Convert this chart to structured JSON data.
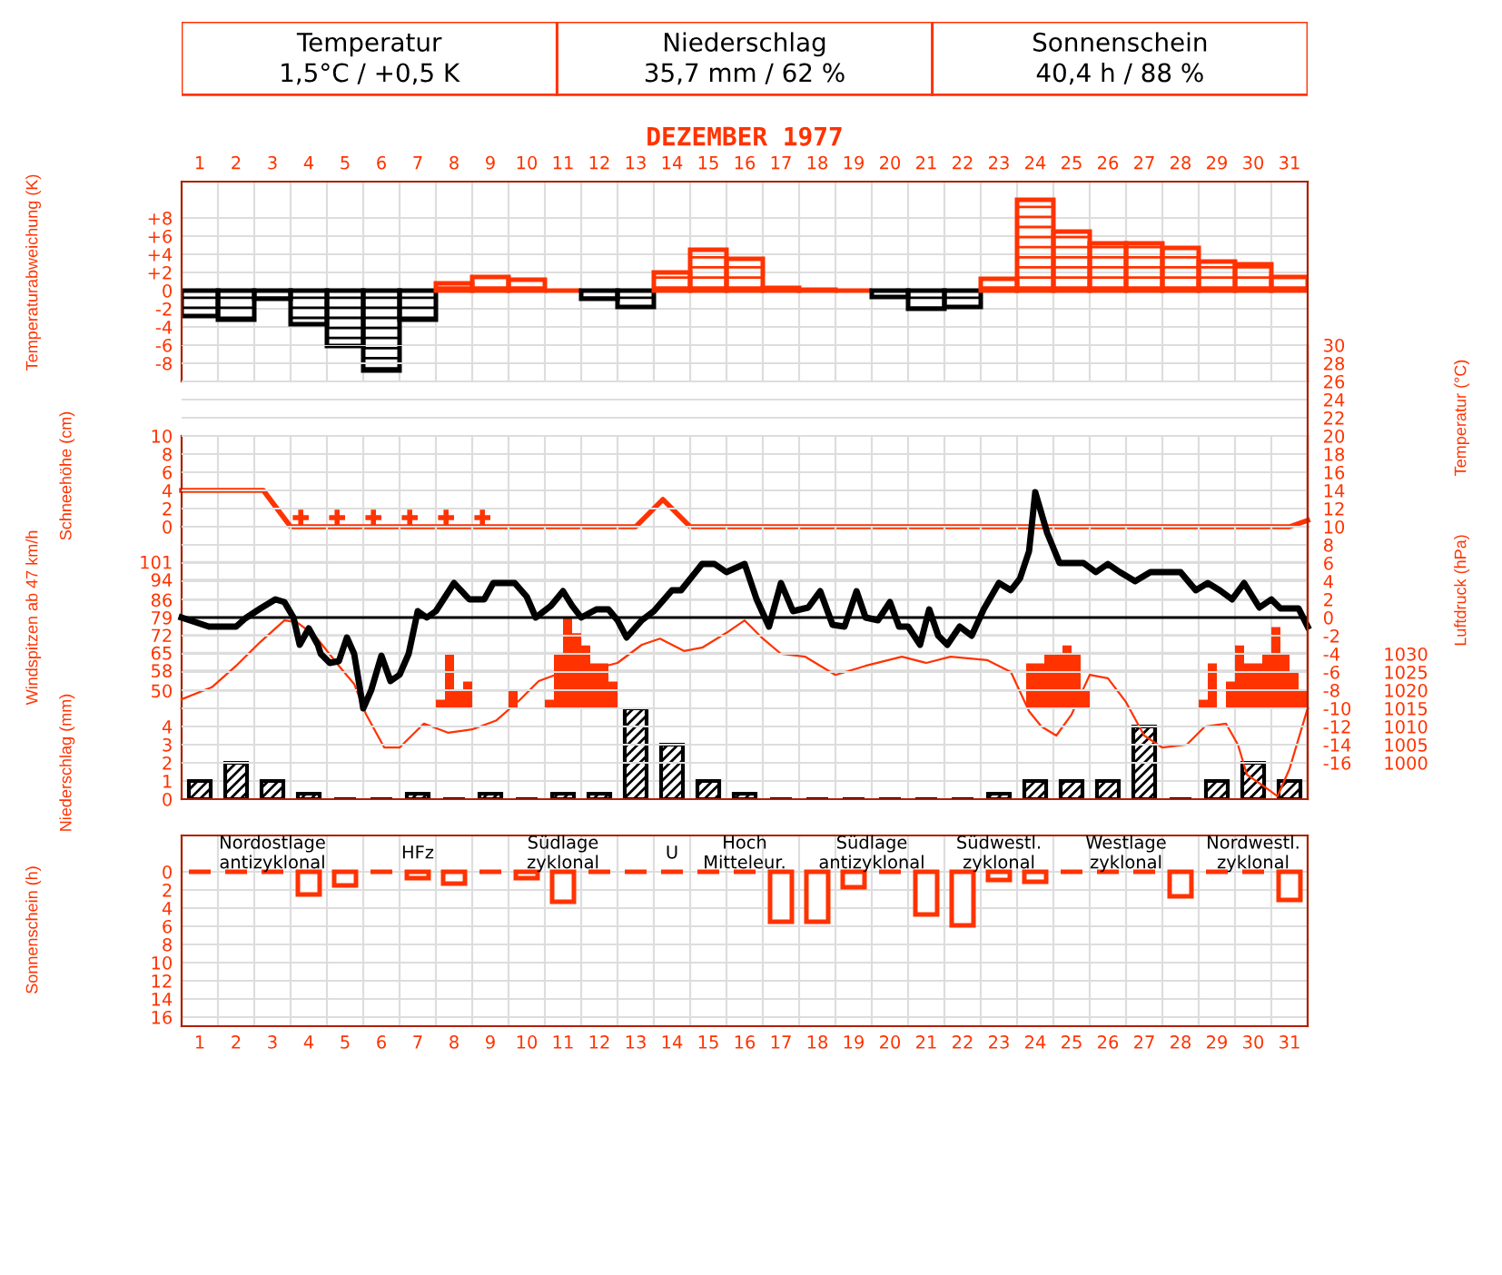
{
  "chart_data": [
    {
      "type": "other",
      "title": "DEZEMBER 1977",
      "annotations": [
        "Temperatur",
        "1,5°C / +0,5 K",
        "Niederschlag",
        "35,7 mm / 62 %",
        "Sonnenschein",
        "40,4 h / 88 %"
      ]
    },
    {
      "type": "bar",
      "ylabel": "Temperaturabweichung (K)",
      "x": [
        1,
        2,
        3,
        4,
        5,
        6,
        7,
        8,
        9,
        10,
        11,
        12,
        13,
        14,
        15,
        16,
        17,
        18,
        19,
        20,
        21,
        22,
        23,
        24,
        25,
        26,
        27,
        28,
        29,
        30,
        31
      ],
      "values": [
        -2.8,
        -3.2,
        -0.9,
        -3.7,
        -6.1,
        -8.8,
        -3.2,
        0.8,
        1.5,
        1.2,
        0,
        -0.9,
        -1.8,
        2,
        4.5,
        3.5,
        0.3,
        0.1,
        0,
        -0.7,
        -2,
        -1.8,
        1.3,
        10,
        6.5,
        5.2,
        5.2,
        4.7,
        3.2,
        2.9,
        1.5
      ],
      "colors": [
        "#000000",
        "#000000",
        "#000000",
        "#000000",
        "#000000",
        "#000000",
        "#000000",
        "#ff3300",
        "#ff3300",
        "#ff3300",
        "#ff3300",
        "#000000",
        "#000000",
        "#ff3300",
        "#ff3300",
        "#ff3300",
        "#ff3300",
        "#ff3300",
        "#ff3300",
        "#000000",
        "#000000",
        "#000000",
        "#ff3300",
        "#ff3300",
        "#ff3300",
        "#ff3300",
        "#ff3300",
        "#ff3300",
        "#ff3300",
        "#ff3300",
        "#ff3300"
      ],
      "xlim": [
        0.5,
        31.5
      ],
      "xticks": [
        1,
        2,
        3,
        4,
        5,
        6,
        7,
        8,
        9,
        10,
        11,
        12,
        13,
        14,
        15,
        16,
        17,
        18,
        19,
        20,
        21,
        22,
        23,
        24,
        25,
        26,
        27,
        28,
        29,
        30,
        31
      ],
      "ylim": [
        -10,
        12
      ],
      "yticks": [
        {
          "value": 8,
          "label": "+8"
        },
        {
          "value": 6,
          "label": "+6"
        },
        {
          "value": 4,
          "label": "+4"
        },
        {
          "value": 2,
          "label": "+2"
        },
        0,
        -2,
        -4,
        -6,
        -8
      ],
      "grid": true
    },
    {
      "type": "line",
      "ylabel": "Schneehöhe (cm)",
      "xlim": [
        0.5,
        31.5
      ],
      "ylim": [
        0,
        10
      ],
      "yticks": [
        0,
        2,
        4,
        6,
        8,
        10
      ],
      "tick_labels": "y",
      "grid": true,
      "series": [
        {
          "color": "#ff3300",
          "x": [
            0.5,
            2.75,
            3.5,
            13.0,
            13.75,
            14.5,
            31.0,
            31.5
          ],
          "values": [
            4,
            4,
            0,
            0,
            3,
            0,
            0,
            0.7
          ]
        },
        {
          "type": "scatter",
          "marker": "cross",
          "color": "#ff3300",
          "x": [
            3.78,
            4.78,
            5.78,
            6.78,
            7.78,
            8.78
          ],
          "values": [
            1,
            1,
            1,
            1,
            1,
            1
          ]
        }
      ]
    },
    {
      "type": "bar",
      "ylabel": "Windspitzen ab 47 km/h",
      "color": "#ff3300",
      "xlim": [
        0.5,
        31.5
      ],
      "ylim": [
        43,
        115
      ],
      "yticks": [
        50,
        58,
        65,
        72,
        79,
        86,
        94,
        101
      ],
      "tick_labels": "y",
      "grid": true,
      "x": [
        7.625,
        7.875,
        8.125,
        8.375,
        9.625,
        10.625,
        10.875,
        11.125,
        11.375,
        11.625,
        11.875,
        12.125,
        12.375,
        23.875,
        24.125,
        24.375,
        24.625,
        24.875,
        25.125,
        25.375,
        28.625,
        28.875,
        29.375,
        29.625,
        29.875,
        30.125,
        30.375,
        30.625,
        30.875,
        31.125,
        31.375
      ],
      "values": [
        46.4,
        64.4,
        50,
        53.6,
        50,
        46.4,
        64.4,
        78.7,
        72.8,
        67.9,
        60.8,
        60.8,
        53.6,
        60.8,
        60.8,
        64.4,
        64.4,
        67.9,
        64.4,
        50,
        46.4,
        60.8,
        53.6,
        67.9,
        60.8,
        60.8,
        64.4,
        75.2,
        64.4,
        57.2,
        50
      ]
    },
    {
      "type": "line",
      "y2label": "Temperatur (°C)",
      "y3label": "Luftdruck (hPa)",
      "xlim": [
        0.5,
        31.5
      ],
      "y2lim": [
        -20,
        30
      ],
      "y2ticks": [
        30,
        28,
        26,
        24,
        22,
        20,
        18,
        16,
        14,
        12,
        10,
        8,
        6,
        4,
        2,
        0,
        -2,
        -4,
        -6,
        -8,
        -10,
        -12,
        -14,
        -16
      ],
      "y3lim": [
        990,
        1115
      ],
      "y3ticks": [
        1030,
        1025,
        1020,
        1015,
        1010,
        1005,
        1000
      ],
      "tick_labels": "y",
      "grid": true,
      "ref_lines": [
        {
          "axis": "y2",
          "value": 0,
          "color": "#000000"
        }
      ],
      "series": [
        {
          "color": "#000000",
          "axis": "y2",
          "x": [
            0.5,
            1.25,
            1.5,
            2.0,
            2.25,
            2.67,
            3.08,
            3.33,
            3.58,
            3.75,
            4.0,
            4.25,
            4.33,
            4.58,
            4.83,
            5.05,
            5.25,
            5.5,
            5.72,
            6.0,
            6.25,
            6.5,
            6.75,
            7.0,
            7.25,
            7.5,
            8.0,
            8.42,
            8.83,
            9.08,
            9.67,
            10.0,
            10.25,
            10.67,
            11.0,
            11.25,
            11.5,
            11.92,
            12.25,
            12.5,
            12.75,
            13.17,
            13.5,
            14.0,
            14.25,
            14.83,
            15.17,
            15.5,
            16.0,
            16.33,
            16.67,
            17.0,
            17.33,
            17.75,
            18.08,
            18.42,
            18.75,
            19.08,
            19.33,
            19.67,
            20.0,
            20.25,
            20.5,
            20.83,
            21.08,
            21.33,
            21.58,
            21.92,
            22.25,
            22.58,
            23.0,
            23.33,
            23.58,
            23.83,
            24.0,
            24.33,
            24.67,
            25.33,
            25.67,
            26.0,
            26.33,
            26.75,
            27.17,
            28.0,
            28.42,
            28.75,
            29.08,
            29.42,
            29.75,
            30.17,
            30.5,
            30.75,
            31.25,
            31.5
          ],
          "values": [
            0,
            -1,
            -1,
            -1,
            -0.1,
            1,
            2,
            1.7,
            0,
            -3,
            -1.2,
            -3,
            -4,
            -5,
            -4.8,
            -2.2,
            -4,
            -10,
            -8,
            -4.2,
            -7,
            -6.3,
            -4,
            0.7,
            0,
            0.7,
            3.8,
            2,
            2,
            3.8,
            3.8,
            2.3,
            0,
            1.3,
            2.9,
            1.3,
            0,
            0.9,
            0.9,
            -0.3,
            -2.2,
            -0.3,
            0.7,
            3,
            3,
            5.9,
            5.9,
            5,
            5.9,
            2,
            -1,
            3.8,
            0.7,
            1.1,
            2.9,
            -0.8,
            -1,
            2.9,
            0,
            -0.3,
            1.7,
            -1,
            -1,
            -3,
            0.9,
            -2,
            -3,
            -1,
            -2,
            0.9,
            3.8,
            3,
            4.3,
            7.3,
            13.8,
            9.3,
            6,
            6,
            5,
            5.9,
            5,
            4,
            5,
            5,
            3,
            3.8,
            3,
            2,
            3.8,
            1.1,
            2,
            1,
            1,
            -1
          ]
        },
        {
          "color": "#ff3300",
          "axis": "y3",
          "x": [
            0.5,
            1.33,
            2.0,
            2.67,
            3.33,
            3.67,
            4.17,
            4.83,
            5.25,
            5.58,
            6.08,
            6.5,
            7.17,
            7.83,
            8.5,
            9.17,
            9.83,
            10.33,
            11.0,
            11.83,
            12.5,
            13.17,
            13.67,
            14.33,
            14.83,
            15.5,
            16.0,
            16.5,
            17.0,
            17.67,
            18.5,
            19.33,
            20.33,
            21.0,
            21.67,
            22.67,
            23.33,
            23.83,
            24.17,
            24.58,
            25.0,
            25.5,
            26.0,
            26.5,
            27.0,
            27.5,
            28.17,
            28.67,
            29.25,
            29.58,
            29.83,
            30.33,
            30.67,
            31.0,
            31.5
          ],
          "values": [
            1017.5,
            1020.8,
            1026.7,
            1033.3,
            1039.2,
            1038.7,
            1035,
            1026.7,
            1021.7,
            1013.3,
            1004.2,
            1004.2,
            1010.8,
            1008.3,
            1009.2,
            1011.7,
            1017.5,
            1022.5,
            1025,
            1025.8,
            1027.5,
            1032.5,
            1034.2,
            1030.8,
            1031.7,
            1035.8,
            1039.2,
            1034.2,
            1030,
            1029.2,
            1024.2,
            1026.7,
            1029.2,
            1027.5,
            1029.2,
            1028.3,
            1025,
            1014.2,
            1010,
            1007.5,
            1013.3,
            1024.2,
            1023.3,
            1016.7,
            1007.5,
            1004.2,
            1005,
            1010,
            1010.8,
            1005,
            996.7,
            993.3,
            990.8,
            998.3,
            1015
          ]
        }
      ]
    },
    {
      "type": "bar",
      "ylabel": "Niederschlag (mm)",
      "color": "#000000",
      "xlim": [
        0.5,
        31.5
      ],
      "ylim": [
        0,
        5
      ],
      "yticks": [
        0,
        1,
        2,
        3,
        4
      ],
      "tick_labels": "y",
      "grid": true,
      "x": [
        1,
        2,
        3,
        4,
        5,
        6,
        7,
        8,
        9,
        10,
        11,
        12,
        13,
        14,
        15,
        16,
        17,
        18,
        19,
        20,
        21,
        22,
        23,
        24,
        25,
        26,
        27,
        28,
        29,
        30,
        31
      ],
      "values": [
        1,
        2,
        1,
        0.3,
        0,
        0,
        0.3,
        0,
        0.3,
        0,
        0.3,
        0.3,
        5,
        3,
        1,
        0.3,
        0,
        0,
        0,
        0,
        0,
        0,
        0.3,
        1,
        1,
        1,
        4,
        0,
        1,
        2,
        1
      ]
    },
    {
      "type": "bar",
      "ylabel": "Sonnenschein (h)",
      "color": "#ff3300",
      "xlim": [
        0.5,
        31.5
      ],
      "ylim": [
        17,
        -4
      ],
      "yticks": [
        0,
        2,
        4,
        6,
        8,
        10,
        12,
        14,
        16
      ],
      "xticks": [
        1,
        2,
        3,
        4,
        5,
        6,
        7,
        8,
        9,
        10,
        11,
        12,
        13,
        14,
        15,
        16,
        17,
        18,
        19,
        20,
        21,
        22,
        23,
        24,
        25,
        26,
        27,
        28,
        29,
        30,
        31
      ],
      "grid": true,
      "x": [
        1,
        2,
        3,
        4,
        5,
        6,
        7,
        8,
        9,
        10,
        11,
        12,
        13,
        14,
        15,
        16,
        17,
        18,
        19,
        20,
        21,
        22,
        23,
        24,
        25,
        26,
        27,
        28,
        29,
        30,
        31
      ],
      "values": [
        0,
        0,
        0,
        2.5,
        1.5,
        0,
        0.7,
        1.3,
        0,
        0.7,
        3.3,
        0,
        0,
        0,
        0,
        0,
        5.5,
        5.5,
        1.7,
        0,
        4.7,
        5.9,
        0.9,
        1.1,
        0,
        0,
        0,
        2.7,
        0,
        0,
        3.1
      ],
      "annotations": [
        "Nordostlage\nantizyklonal",
        "HFz",
        "Südlage\nzyklonal",
        "U",
        "Hoch\nMitteleur.",
        "Südlage\nantizyklonal",
        "Südwestl.\nzyklonal",
        "Westlage\nzyklonal",
        "Nordwestl.\nzyklonal"
      ]
    }
  ]
}
